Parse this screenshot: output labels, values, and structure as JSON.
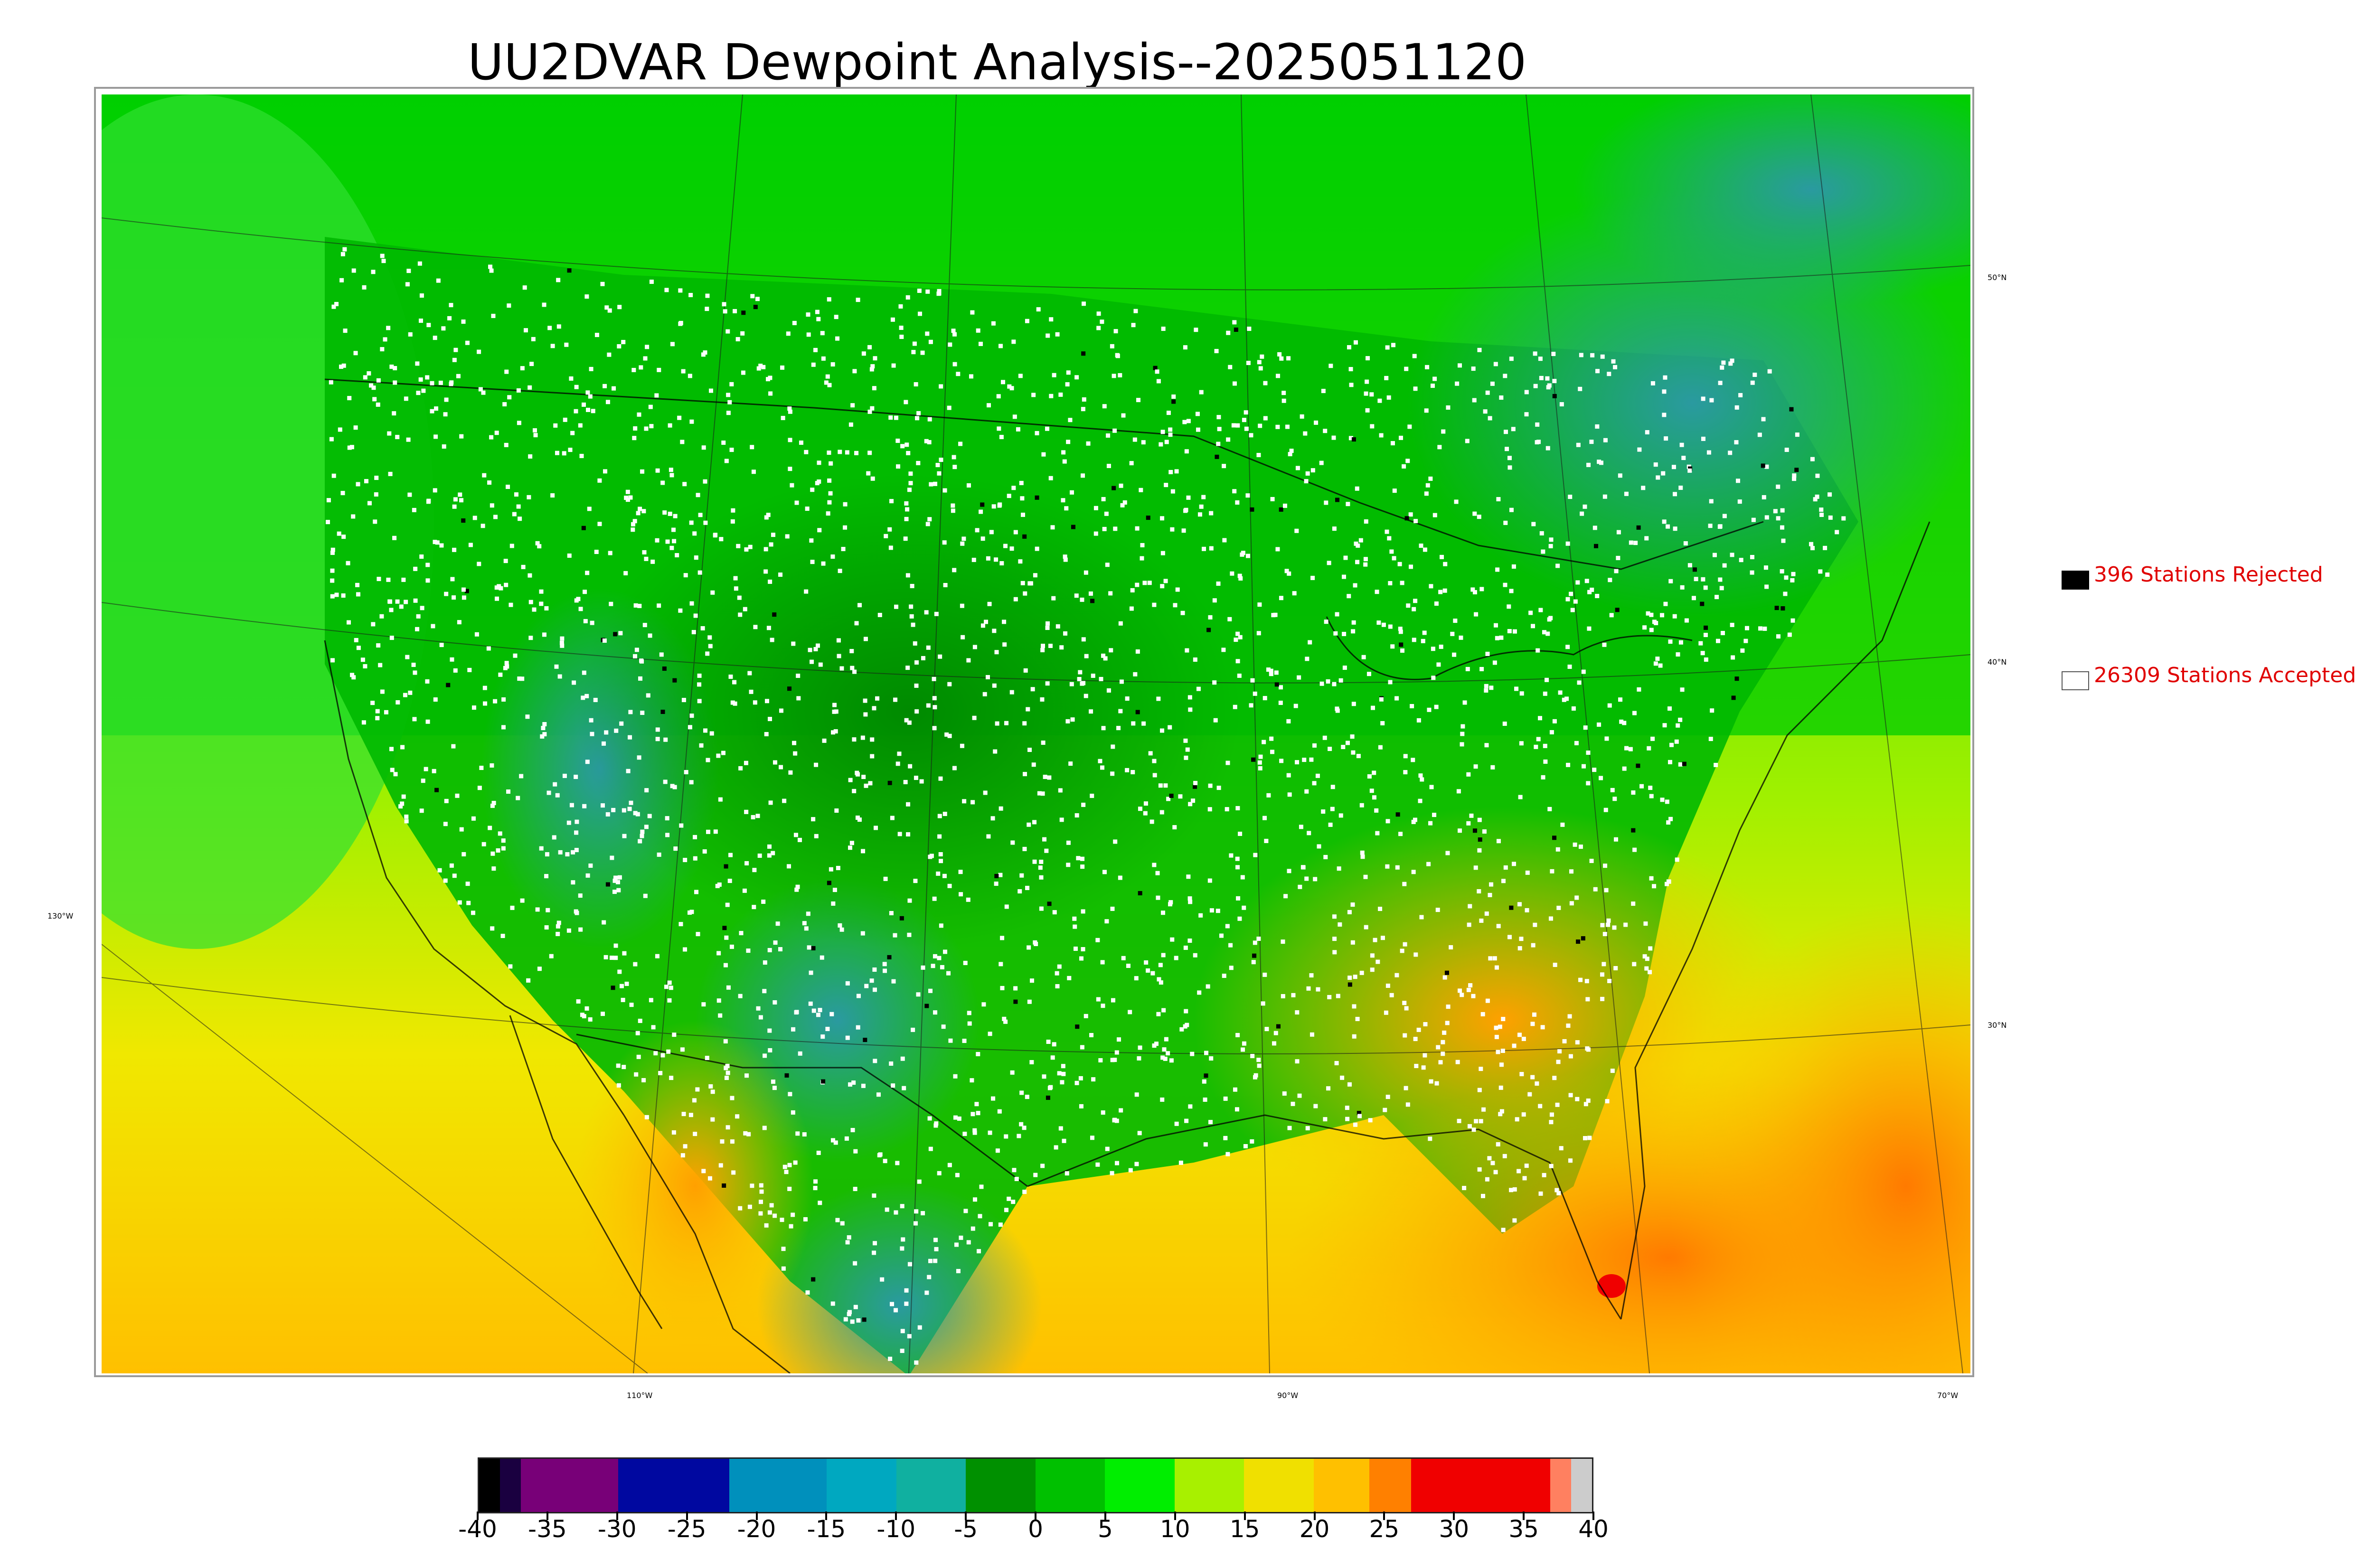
{
  "title": "UU2DVAR Dewpoint Analysis--2025051120",
  "legend": {
    "rejected": {
      "label": "396 Stations Rejected",
      "color": "#000000"
    },
    "accepted": {
      "label": "26309 Stations Accepted",
      "color": "#ffffff"
    },
    "text_color": "#e00000"
  },
  "latitude_labels": [
    "50°N",
    "40°N",
    "30°N"
  ],
  "longitude_labels": [
    "130°W",
    "110°W",
    "90°W",
    "70°W"
  ],
  "colorbar": {
    "tick_labels": [
      "-40",
      "-35",
      "-30",
      "-25",
      "-20",
      "-15",
      "-10",
      "-5",
      "0",
      "5",
      "10",
      "15",
      "20",
      "25",
      "30",
      "35",
      "40"
    ],
    "colors": [
      {
        "from": -40,
        "to": -38.5,
        "color": "#000000"
      },
      {
        "from": -38.5,
        "to": -37,
        "color": "#1a0040"
      },
      {
        "from": -37,
        "to": -30,
        "color": "#780078"
      },
      {
        "from": -30,
        "to": -22,
        "color": "#0008a0"
      },
      {
        "from": -22,
        "to": -15,
        "color": "#0090bc"
      },
      {
        "from": -15,
        "to": -10,
        "color": "#00a8c0"
      },
      {
        "from": -10,
        "to": -5,
        "color": "#10b0a0"
      },
      {
        "from": -5,
        "to": 0,
        "color": "#009000"
      },
      {
        "from": 0,
        "to": 5,
        "color": "#00c000"
      },
      {
        "from": 5,
        "to": 10,
        "color": "#00ee00"
      },
      {
        "from": 10,
        "to": 15,
        "color": "#a8f000"
      },
      {
        "from": 15,
        "to": 20,
        "color": "#f0e000"
      },
      {
        "from": 20,
        "to": 24,
        "color": "#ffc000"
      },
      {
        "from": 24,
        "to": 27,
        "color": "#ff8000"
      },
      {
        "from": 27,
        "to": 37,
        "color": "#f00000"
      },
      {
        "from": 37,
        "to": 38.5,
        "color": "#ff8060"
      },
      {
        "from": 38.5,
        "to": 40,
        "color": "#cccccc"
      }
    ]
  },
  "map_colors": {
    "ocean_warm": "#f0e000",
    "land_green": "#00c800",
    "dry_teal": "#20a090",
    "south_orange": "#ffb000",
    "gulf_orange": "#ff9000",
    "hot_red": "#ff3000",
    "station_accepted": "#ffffff",
    "station_rejected": "#000000"
  }
}
